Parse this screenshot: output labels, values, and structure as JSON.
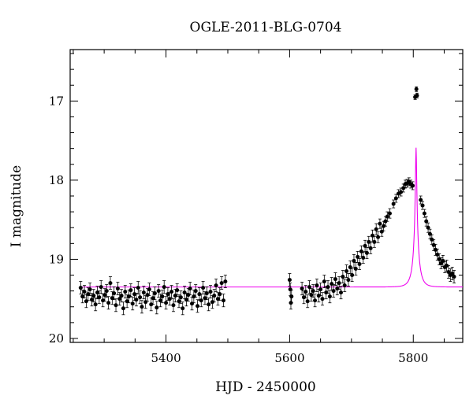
{
  "chart_data": {
    "type": "scatter",
    "title": "OGLE-2011-BLG-0704",
    "xlabel": "HJD - 2450000",
    "ylabel": "I magnitude",
    "xlim": [
      5245,
      5880
    ],
    "ylim": [
      20.05,
      16.35
    ],
    "y_inverted": true,
    "xticks": [
      5400,
      5600,
      5800
    ],
    "yticks": [
      17,
      18,
      19,
      20
    ],
    "grid": false,
    "legend": "none",
    "colors": {
      "data": "#000000",
      "model": "#ee00ee"
    },
    "series": [
      {
        "kind": "points_with_errorbars",
        "points": [
          [
            5262,
            19.36,
            0.08
          ],
          [
            5265,
            19.47,
            0.08
          ],
          [
            5268,
            19.41,
            0.08
          ],
          [
            5271,
            19.53,
            0.08
          ],
          [
            5274,
            19.44,
            0.08
          ],
          [
            5277,
            19.38,
            0.08
          ],
          [
            5280,
            19.51,
            0.08
          ],
          [
            5283,
            19.46,
            0.08
          ],
          [
            5286,
            19.57,
            0.08
          ],
          [
            5289,
            19.42,
            0.08
          ],
          [
            5292,
            19.48,
            0.08
          ],
          [
            5295,
            19.35,
            0.08
          ],
          [
            5298,
            19.52,
            0.08
          ],
          [
            5301,
            19.45,
            0.08
          ],
          [
            5304,
            19.4,
            0.08
          ],
          [
            5307,
            19.55,
            0.08
          ],
          [
            5310,
            19.3,
            0.08
          ],
          [
            5313,
            19.49,
            0.08
          ],
          [
            5316,
            19.43,
            0.08
          ],
          [
            5319,
            19.58,
            0.08
          ],
          [
            5322,
            19.37,
            0.08
          ],
          [
            5325,
            19.5,
            0.08
          ],
          [
            5328,
            19.46,
            0.08
          ],
          [
            5331,
            19.62,
            0.08
          ],
          [
            5334,
            19.41,
            0.08
          ],
          [
            5337,
            19.53,
            0.08
          ],
          [
            5340,
            19.47,
            0.08
          ],
          [
            5343,
            19.39,
            0.08
          ],
          [
            5346,
            19.56,
            0.08
          ],
          [
            5349,
            19.44,
            0.08
          ],
          [
            5352,
            19.51,
            0.08
          ],
          [
            5355,
            19.36,
            0.08
          ],
          [
            5358,
            19.48,
            0.08
          ],
          [
            5361,
            19.6,
            0.08
          ],
          [
            5364,
            19.42,
            0.08
          ],
          [
            5367,
            19.54,
            0.08
          ],
          [
            5370,
            19.45,
            0.08
          ],
          [
            5373,
            19.38,
            0.08
          ],
          [
            5376,
            19.57,
            0.08
          ],
          [
            5379,
            19.49,
            0.08
          ],
          [
            5382,
            19.43,
            0.08
          ],
          [
            5385,
            19.61,
            0.08
          ],
          [
            5388,
            19.4,
            0.08
          ],
          [
            5391,
            19.52,
            0.08
          ],
          [
            5394,
            19.47,
            0.08
          ],
          [
            5397,
            19.35,
            0.08
          ],
          [
            5400,
            19.55,
            0.08
          ],
          [
            5403,
            19.44,
            0.08
          ],
          [
            5406,
            19.5,
            0.08
          ],
          [
            5409,
            19.41,
            0.08
          ],
          [
            5412,
            19.58,
            0.08
          ],
          [
            5415,
            19.46,
            0.08
          ],
          [
            5418,
            19.39,
            0.08
          ],
          [
            5421,
            19.53,
            0.08
          ],
          [
            5424,
            19.48,
            0.08
          ],
          [
            5427,
            19.62,
            0.08
          ],
          [
            5430,
            19.42,
            0.08
          ],
          [
            5433,
            19.51,
            0.08
          ],
          [
            5436,
            19.45,
            0.08
          ],
          [
            5439,
            19.37,
            0.08
          ],
          [
            5442,
            19.56,
            0.08
          ],
          [
            5445,
            19.47,
            0.08
          ],
          [
            5448,
            19.4,
            0.08
          ],
          [
            5451,
            19.59,
            0.08
          ],
          [
            5454,
            19.44,
            0.08
          ],
          [
            5457,
            19.52,
            0.08
          ],
          [
            5460,
            19.36,
            0.08
          ],
          [
            5463,
            19.49,
            0.08
          ],
          [
            5466,
            19.43,
            0.08
          ],
          [
            5469,
            19.57,
            0.08
          ],
          [
            5472,
            19.41,
            0.08
          ],
          [
            5475,
            19.54,
            0.08
          ],
          [
            5478,
            19.46,
            0.08
          ],
          [
            5481,
            19.33,
            0.08
          ],
          [
            5484,
            19.5,
            0.08
          ],
          [
            5487,
            19.44,
            0.08
          ],
          [
            5490,
            19.3,
            0.08
          ],
          [
            5493,
            19.52,
            0.08
          ],
          [
            5496,
            19.28,
            0.08
          ],
          [
            5600,
            19.26,
            0.08
          ],
          [
            5601,
            19.38,
            0.08
          ],
          [
            5602,
            19.55,
            0.08
          ],
          [
            5603,
            19.47,
            0.08
          ],
          [
            5620,
            19.37,
            0.08
          ],
          [
            5623,
            19.48,
            0.08
          ],
          [
            5626,
            19.41,
            0.08
          ],
          [
            5629,
            19.53,
            0.08
          ],
          [
            5632,
            19.35,
            0.08
          ],
          [
            5635,
            19.45,
            0.08
          ],
          [
            5638,
            19.4,
            0.08
          ],
          [
            5641,
            19.52,
            0.08
          ],
          [
            5644,
            19.33,
            0.08
          ],
          [
            5647,
            19.46,
            0.08
          ],
          [
            5650,
            19.38,
            0.08
          ],
          [
            5653,
            19.5,
            0.08
          ],
          [
            5656,
            19.28,
            0.08
          ],
          [
            5659,
            19.42,
            0.08
          ],
          [
            5662,
            19.35,
            0.08
          ],
          [
            5665,
            19.47,
            0.08
          ],
          [
            5668,
            19.31,
            0.08
          ],
          [
            5671,
            19.4,
            0.08
          ],
          [
            5674,
            19.25,
            0.08
          ],
          [
            5677,
            19.37,
            0.08
          ],
          [
            5680,
            19.3,
            0.08
          ],
          [
            5683,
            19.42,
            0.08
          ],
          [
            5686,
            19.22,
            0.08
          ],
          [
            5689,
            19.33,
            0.08
          ],
          [
            5692,
            19.15,
            0.08
          ],
          [
            5695,
            19.26,
            0.08
          ],
          [
            5698,
            19.1,
            0.08
          ],
          [
            5701,
            19.2,
            0.08
          ],
          [
            5704,
            19.02,
            0.08
          ],
          [
            5707,
            19.12,
            0.08
          ],
          [
            5710,
            18.97,
            0.07
          ],
          [
            5713,
            19.06,
            0.07
          ],
          [
            5716,
            18.9,
            0.07
          ],
          [
            5719,
            18.98,
            0.07
          ],
          [
            5722,
            18.83,
            0.07
          ],
          [
            5725,
            18.92,
            0.07
          ],
          [
            5728,
            18.78,
            0.07
          ],
          [
            5731,
            18.86,
            0.07
          ],
          [
            5734,
            18.7,
            0.07
          ],
          [
            5737,
            18.78,
            0.07
          ],
          [
            5740,
            18.62,
            0.07
          ],
          [
            5743,
            18.72,
            0.07
          ],
          [
            5746,
            18.55,
            0.06
          ],
          [
            5749,
            18.65,
            0.06
          ],
          [
            5752,
            18.58,
            0.06
          ],
          [
            5755,
            18.52,
            0.06
          ],
          [
            5758,
            18.46,
            0.06
          ],
          [
            5762,
            18.42,
            0.06
          ],
          [
            5768,
            18.3,
            0.05
          ],
          [
            5772,
            18.23,
            0.05
          ],
          [
            5776,
            18.17,
            0.05
          ],
          [
            5780,
            18.15,
            0.05
          ],
          [
            5784,
            18.1,
            0.05
          ],
          [
            5787,
            18.05,
            0.05
          ],
          [
            5790,
            18.04,
            0.05
          ],
          [
            5793,
            18.02,
            0.05
          ],
          [
            5796,
            18.05,
            0.05
          ],
          [
            5799,
            18.07,
            0.05
          ],
          [
            5803,
            16.95,
            0.03
          ],
          [
            5805,
            16.85,
            0.03
          ],
          [
            5806,
            16.93,
            0.03
          ],
          [
            5812,
            18.25,
            0.05
          ],
          [
            5815,
            18.32,
            0.05
          ],
          [
            5818,
            18.42,
            0.05
          ],
          [
            5821,
            18.52,
            0.06
          ],
          [
            5824,
            18.6,
            0.06
          ],
          [
            5827,
            18.68,
            0.06
          ],
          [
            5830,
            18.75,
            0.06
          ],
          [
            5833,
            18.82,
            0.07
          ],
          [
            5836,
            18.88,
            0.07
          ],
          [
            5839,
            18.94,
            0.07
          ],
          [
            5842,
            19.0,
            0.07
          ],
          [
            5845,
            19.05,
            0.07
          ],
          [
            5848,
            19.02,
            0.07
          ],
          [
            5851,
            19.1,
            0.07
          ],
          [
            5854,
            19.08,
            0.07
          ],
          [
            5857,
            19.16,
            0.08
          ],
          [
            5860,
            19.2,
            0.08
          ],
          [
            5863,
            19.18,
            0.08
          ],
          [
            5866,
            19.22,
            0.08
          ]
        ]
      },
      {
        "kind": "model_curve",
        "t0": 5804.5,
        "tE": 9.5,
        "u0": 0.09,
        "baseline": 19.35,
        "blend_fraction": 0.4,
        "x_range": [
          5262,
          5880
        ]
      }
    ]
  }
}
